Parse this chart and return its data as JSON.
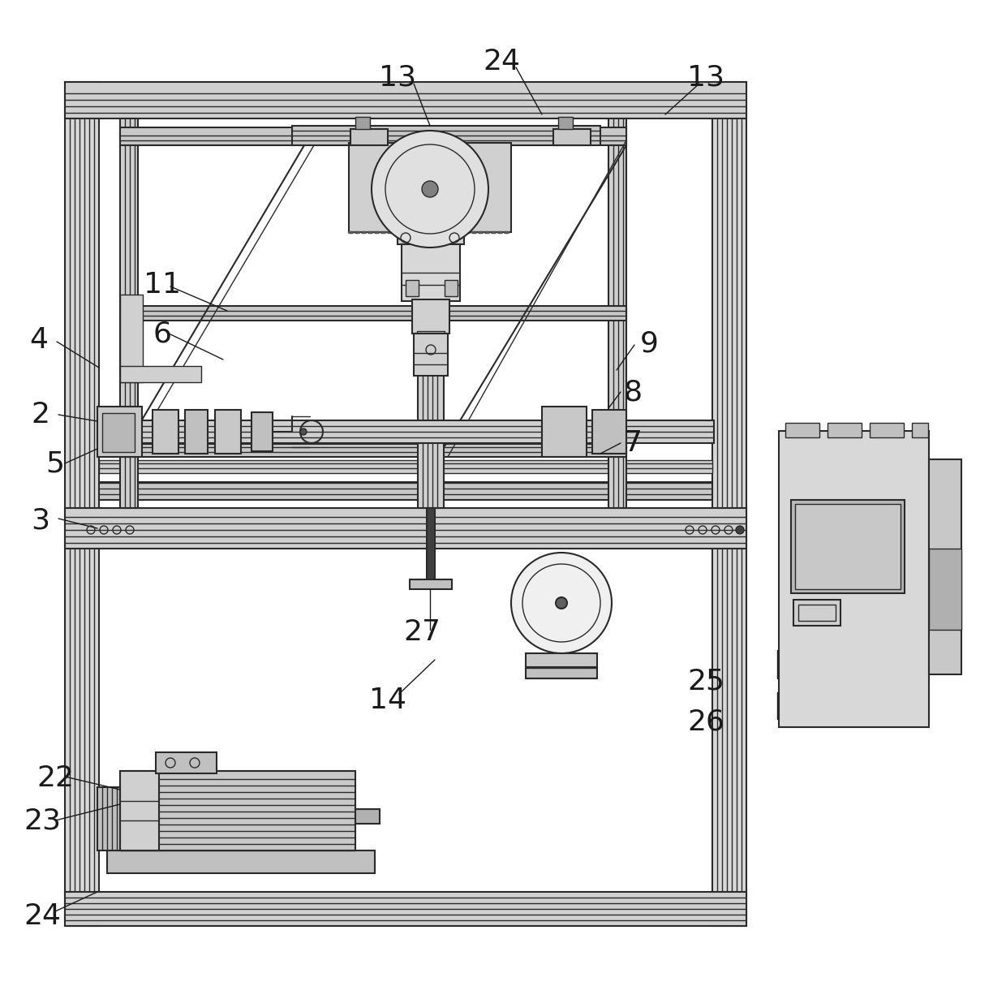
{
  "background_color": "#ffffff",
  "lc": "#2a2a2a",
  "fig_width": 12.4,
  "fig_height": 12.31,
  "dpi": 100
}
